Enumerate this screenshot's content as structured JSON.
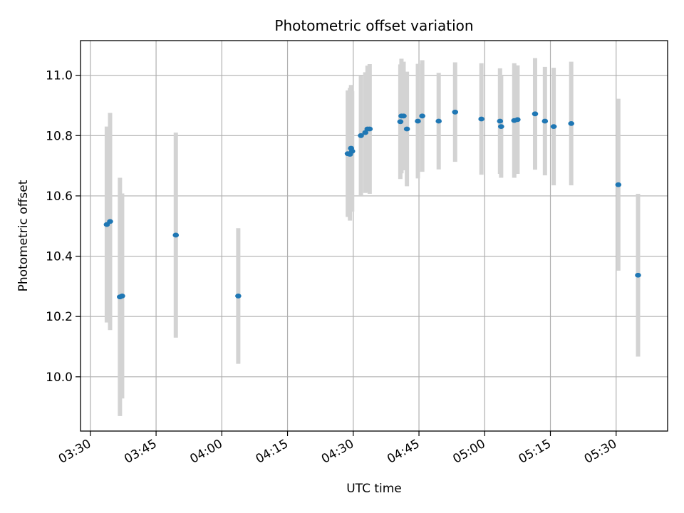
{
  "chart_data": {
    "type": "scatter",
    "title": "Photometric offset variation",
    "xlabel": "UTC time",
    "ylabel": "Photometric offset",
    "x_ticks": [
      "03:30",
      "03:45",
      "04:00",
      "04:15",
      "04:30",
      "04:45",
      "05:00",
      "05:15",
      "05:30"
    ],
    "y_ticks": [
      "10.0",
      "10.2",
      "10.4",
      "10.6",
      "10.8",
      "11.0"
    ],
    "xlim": [
      "03:27:45",
      "05:41:45"
    ],
    "ylim": [
      9.82,
      11.115
    ],
    "grid": true,
    "colors": {
      "marker": "#1f77b4",
      "errorbar": "#d3d3d3",
      "grid": "#b0b0b0"
    },
    "series": [
      {
        "points": [
          {
            "x": "03:33:45",
            "y": 10.505,
            "err": 0.325
          },
          {
            "x": "03:34:30",
            "y": 10.515,
            "err": 0.36
          },
          {
            "x": "03:36:45",
            "y": 10.265,
            "err": 0.395
          },
          {
            "x": "03:37:15",
            "y": 10.268,
            "err": 0.34
          },
          {
            "x": "03:49:30",
            "y": 10.47,
            "err": 0.34
          },
          {
            "x": "04:03:45",
            "y": 10.268,
            "err": 0.225
          },
          {
            "x": "04:28:45",
            "y": 10.74,
            "err": 0.21
          },
          {
            "x": "04:29:15",
            "y": 10.738,
            "err": 0.22
          },
          {
            "x": "04:29:30",
            "y": 10.758,
            "err": 0.21
          },
          {
            "x": "04:29:45",
            "y": 10.748,
            "err": 0.2
          },
          {
            "x": "04:31:45",
            "y": 10.8,
            "err": 0.2
          },
          {
            "x": "04:32:45",
            "y": 10.81,
            "err": 0.2
          },
          {
            "x": "04:33:15",
            "y": 10.822,
            "err": 0.21
          },
          {
            "x": "04:33:45",
            "y": 10.822,
            "err": 0.215
          },
          {
            "x": "04:40:45",
            "y": 10.846,
            "err": 0.19
          },
          {
            "x": "04:41:00",
            "y": 10.865,
            "err": 0.19
          },
          {
            "x": "04:41:30",
            "y": 10.865,
            "err": 0.18
          },
          {
            "x": "04:42:15",
            "y": 10.822,
            "err": 0.19
          },
          {
            "x": "04:44:45",
            "y": 10.848,
            "err": 0.19
          },
          {
            "x": "04:45:45",
            "y": 10.865,
            "err": 0.185
          },
          {
            "x": "04:49:30",
            "y": 10.848,
            "err": 0.16
          },
          {
            "x": "04:53:15",
            "y": 10.878,
            "err": 0.165
          },
          {
            "x": "04:59:15",
            "y": 10.855,
            "err": 0.185
          },
          {
            "x": "05:03:30",
            "y": 10.848,
            "err": 0.175
          },
          {
            "x": "05:03:45",
            "y": 10.83,
            "err": 0.17
          },
          {
            "x": "05:06:45",
            "y": 10.85,
            "err": 0.19
          },
          {
            "x": "05:07:30",
            "y": 10.853,
            "err": 0.18
          },
          {
            "x": "05:11:30",
            "y": 10.872,
            "err": 0.185
          },
          {
            "x": "05:13:45",
            "y": 10.848,
            "err": 0.18
          },
          {
            "x": "05:15:45",
            "y": 10.83,
            "err": 0.195
          },
          {
            "x": "05:19:45",
            "y": 10.84,
            "err": 0.205
          },
          {
            "x": "05:30:30",
            "y": 10.637,
            "err": 0.285
          },
          {
            "x": "05:35:00",
            "y": 10.337,
            "err": 0.27
          }
        ]
      }
    ]
  }
}
